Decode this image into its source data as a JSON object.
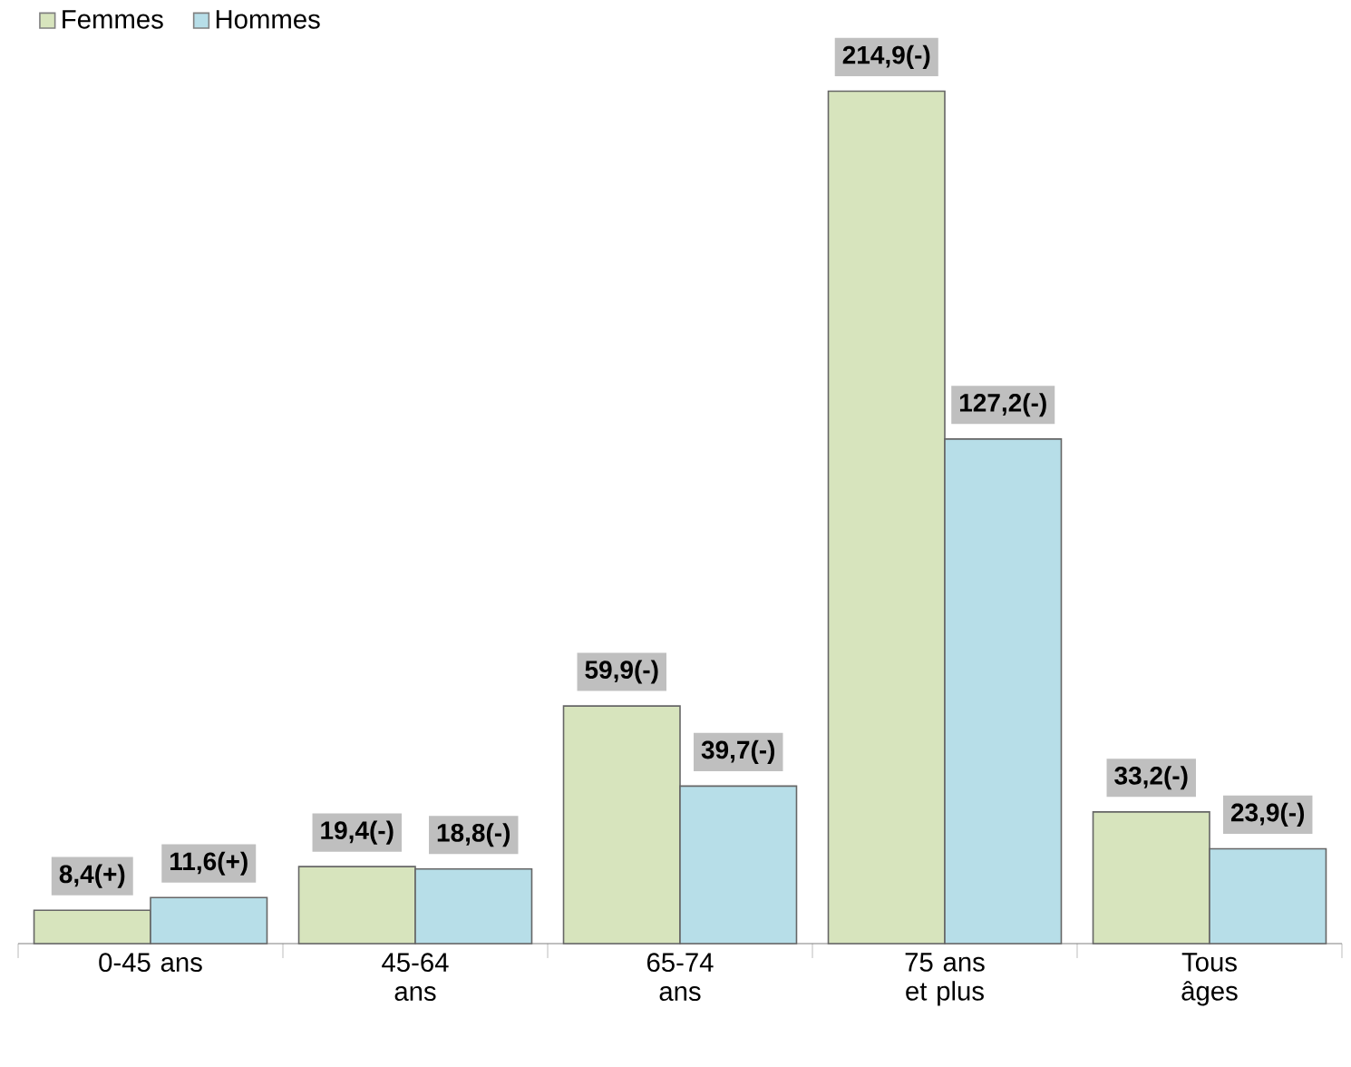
{
  "chart_data": {
    "type": "bar",
    "categories": [
      "0-45 ans",
      "45-64 ans",
      "65-74 ans",
      "75 ans et plus",
      "Tous âges"
    ],
    "series": [
      {
        "name": "Femmes",
        "color": "#d7e4bd",
        "values": [
          8.4,
          19.4,
          59.9,
          214.9,
          33.2
        ],
        "value_labels": [
          "8,4(+)",
          "19,4(-)",
          "59,9(-)",
          "214,9(-)",
          "33,2(-)"
        ]
      },
      {
        "name": "Hommes",
        "color": "#b7dee8",
        "values": [
          11.6,
          18.8,
          39.7,
          127.2,
          23.9
        ],
        "value_labels": [
          "11,6(+)",
          "18,8(-)",
          "39,7(-)",
          "127,2(-)",
          "23,9(-)"
        ]
      }
    ],
    "legend": "top left",
    "tick_labels": "x"
  }
}
